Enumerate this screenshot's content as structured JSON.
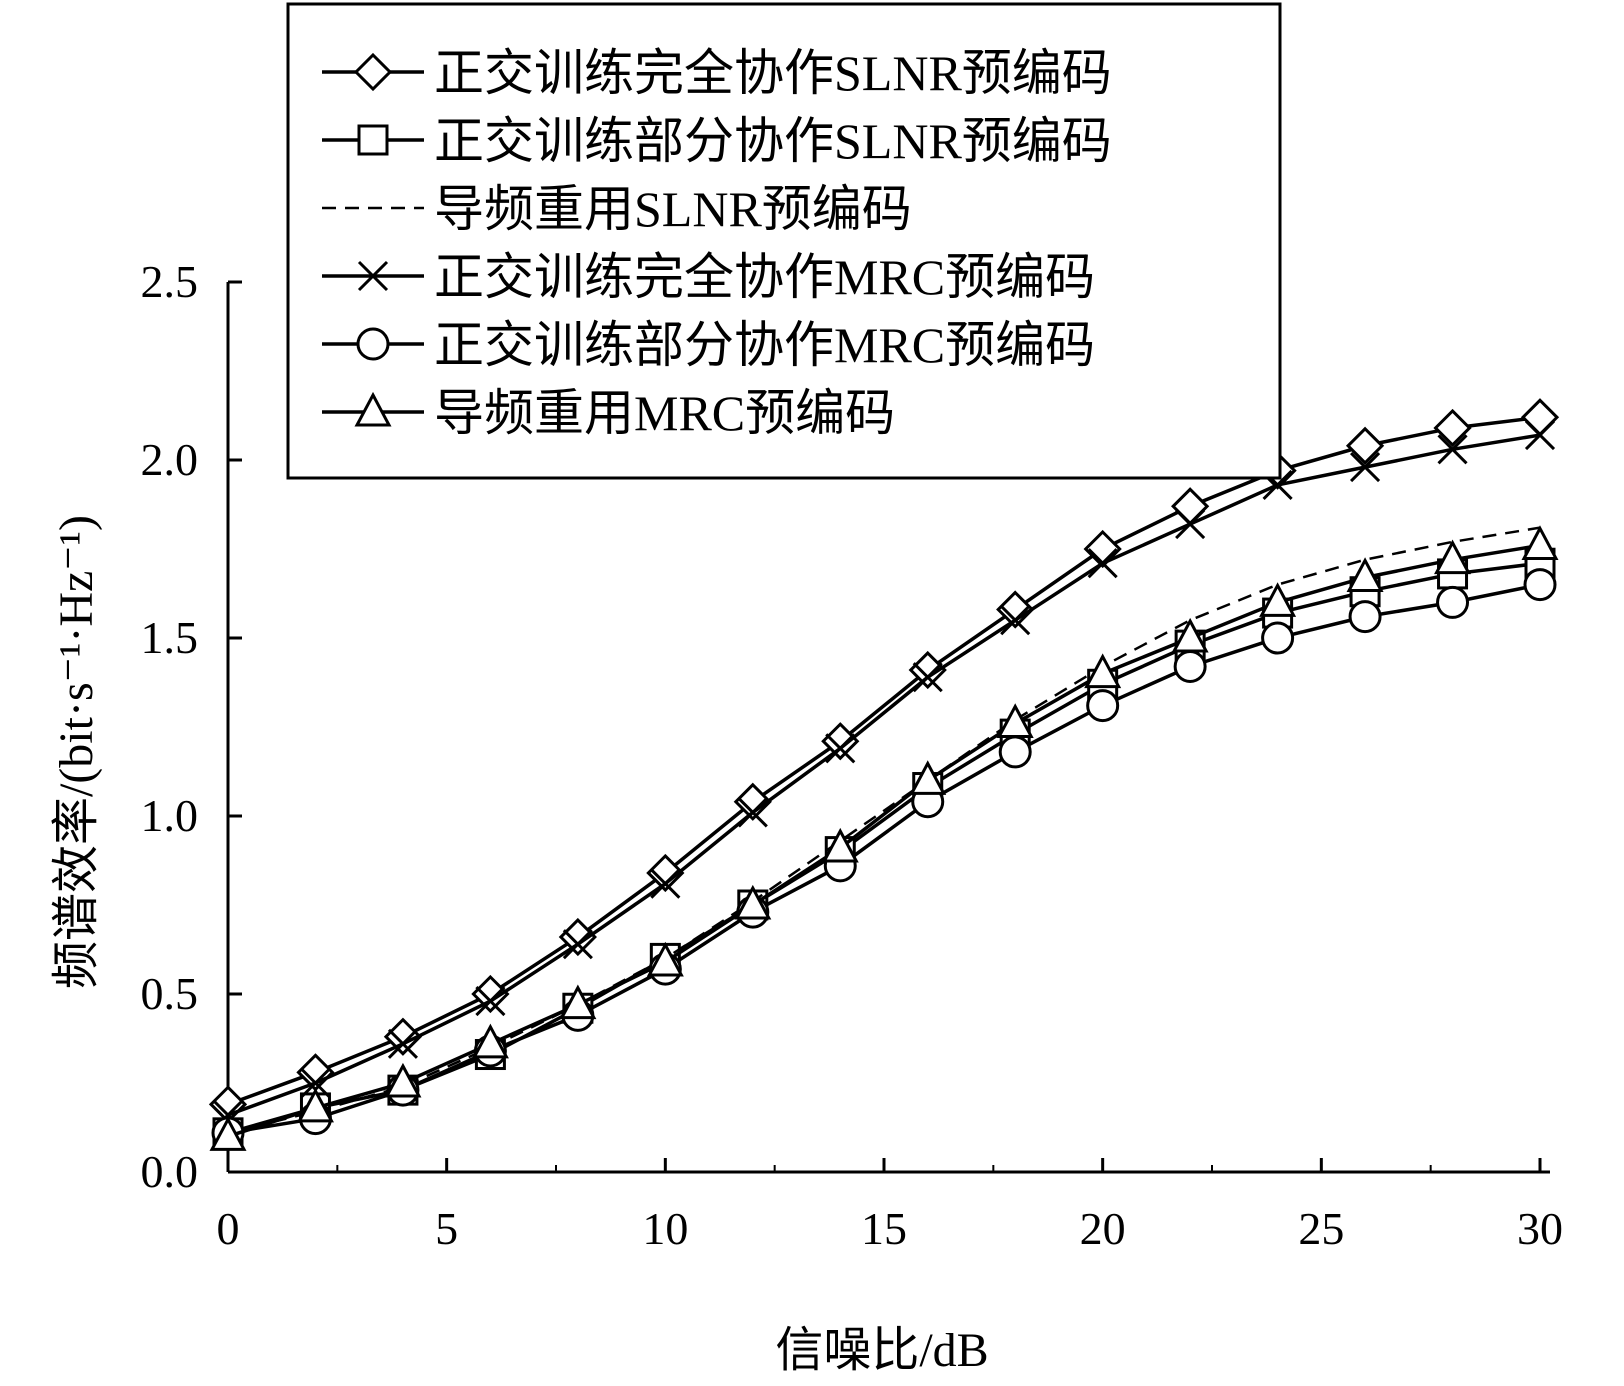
{
  "chart_data": {
    "type": "line",
    "xlabel": "信噪比/dB",
    "ylabel": "频谱效率/(bit·s⁻¹·Hz⁻¹)",
    "xlim": [
      0,
      30
    ],
    "ylim": [
      0,
      2.5
    ],
    "x_ticks": [
      "0",
      "5",
      "10",
      "15",
      "20",
      "25",
      "30"
    ],
    "y_ticks": [
      "0.0",
      "0.5",
      "1.0",
      "1.5",
      "2.0",
      "2.5"
    ],
    "x": [
      0,
      2,
      4,
      6,
      8,
      10,
      12,
      14,
      16,
      18,
      20,
      22,
      24,
      26,
      28,
      30
    ],
    "grid": false,
    "legend_position": "top",
    "series": [
      {
        "name": "正交训练完全协作SLNR预编码",
        "marker": "diamond",
        "line_style": "solid",
        "values": [
          0.19,
          0.28,
          0.38,
          0.5,
          0.66,
          0.84,
          1.04,
          1.21,
          1.41,
          1.58,
          1.75,
          1.87,
          1.97,
          2.04,
          2.09,
          2.12
        ]
      },
      {
        "name": "正交训练部分协作SLNR预编码",
        "marker": "square",
        "line_style": "solid",
        "values": [
          0.11,
          0.18,
          0.23,
          0.33,
          0.46,
          0.6,
          0.75,
          0.9,
          1.08,
          1.23,
          1.37,
          1.48,
          1.57,
          1.63,
          1.68,
          1.71
        ]
      },
      {
        "name": "导频重用SLNR预编码",
        "marker": "none",
        "line_style": "dashed",
        "values": [
          0.11,
          0.17,
          0.24,
          0.35,
          0.47,
          0.6,
          0.76,
          0.93,
          1.1,
          1.27,
          1.42,
          1.55,
          1.65,
          1.72,
          1.77,
          1.81
        ]
      },
      {
        "name": "正交训练完全协作MRC预编码",
        "marker": "x",
        "line_style": "solid",
        "values": [
          0.16,
          0.25,
          0.36,
          0.48,
          0.64,
          0.81,
          1.01,
          1.19,
          1.39,
          1.55,
          1.71,
          1.82,
          1.93,
          1.98,
          2.03,
          2.07
        ]
      },
      {
        "name": "正交训练部分协作MRC预编码",
        "marker": "circle",
        "line_style": "solid",
        "values": [
          0.11,
          0.15,
          0.23,
          0.34,
          0.44,
          0.57,
          0.73,
          0.86,
          1.04,
          1.18,
          1.31,
          1.42,
          1.5,
          1.56,
          1.6,
          1.65
        ]
      },
      {
        "name": "导频重用MRC预编码",
        "marker": "triangle",
        "line_style": "solid",
        "values": [
          0.1,
          0.18,
          0.25,
          0.36,
          0.47,
          0.59,
          0.75,
          0.91,
          1.1,
          1.26,
          1.4,
          1.5,
          1.6,
          1.67,
          1.72,
          1.76
        ]
      }
    ]
  }
}
